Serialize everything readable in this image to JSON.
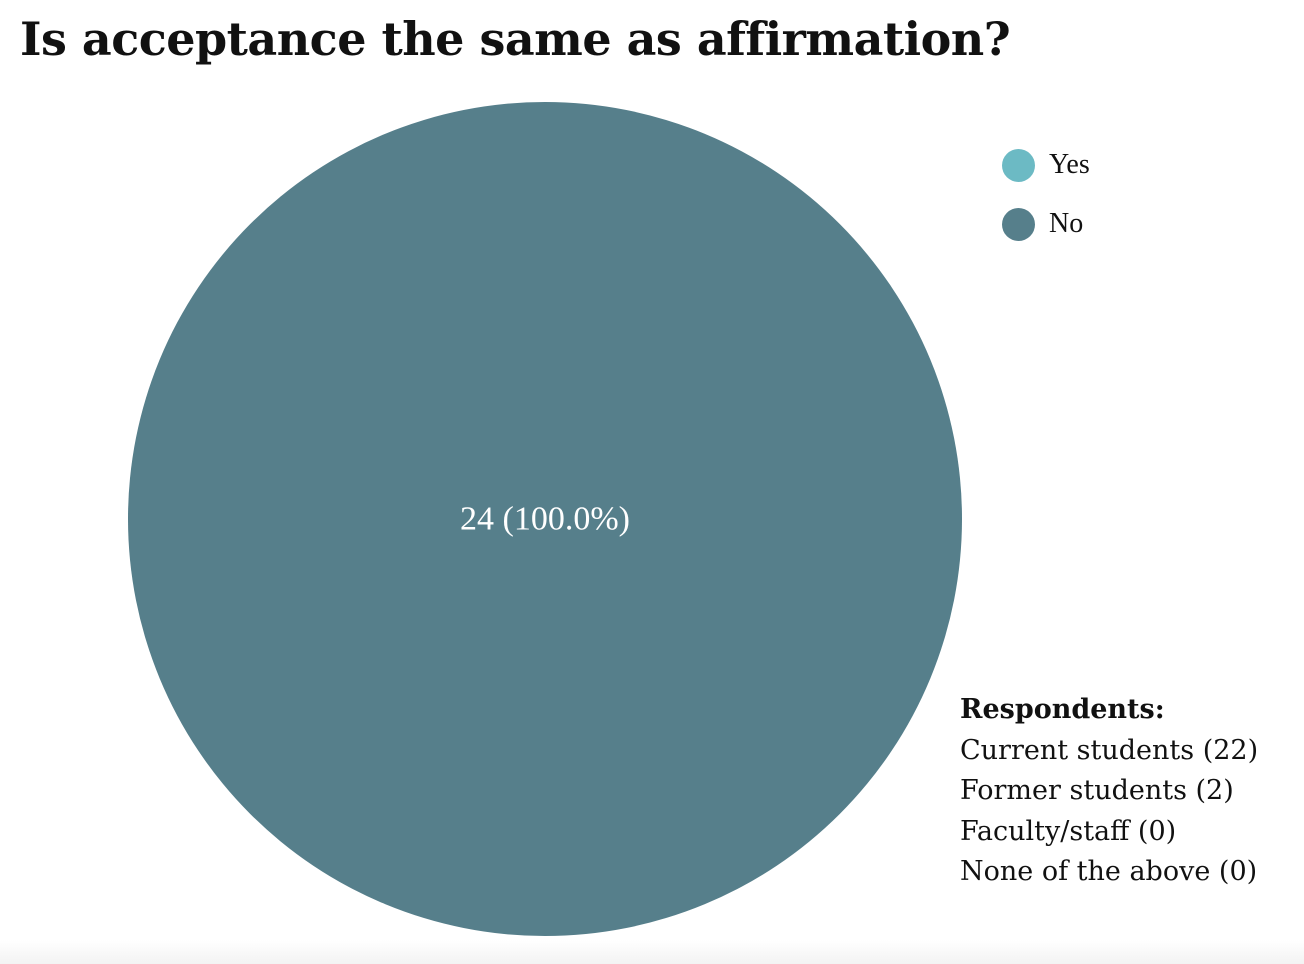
{
  "chart_data": {
    "type": "pie",
    "title": "Is acceptance the same as affirmation?",
    "slices": [
      {
        "label": "Yes",
        "value": 0,
        "color": "#6cbac4"
      },
      {
        "label": "No",
        "value": 24,
        "color": "#567f8b"
      }
    ],
    "data_labels": [
      "24 (100.0%)"
    ],
    "legend": {
      "placement": "top-right",
      "entries": [
        "Yes",
        "No"
      ]
    }
  },
  "respondents": {
    "heading": "Respondents:",
    "items": [
      "Current students (22)",
      "Former students (2)",
      "Faculty/staff (0)",
      "None of the above (0)"
    ]
  }
}
